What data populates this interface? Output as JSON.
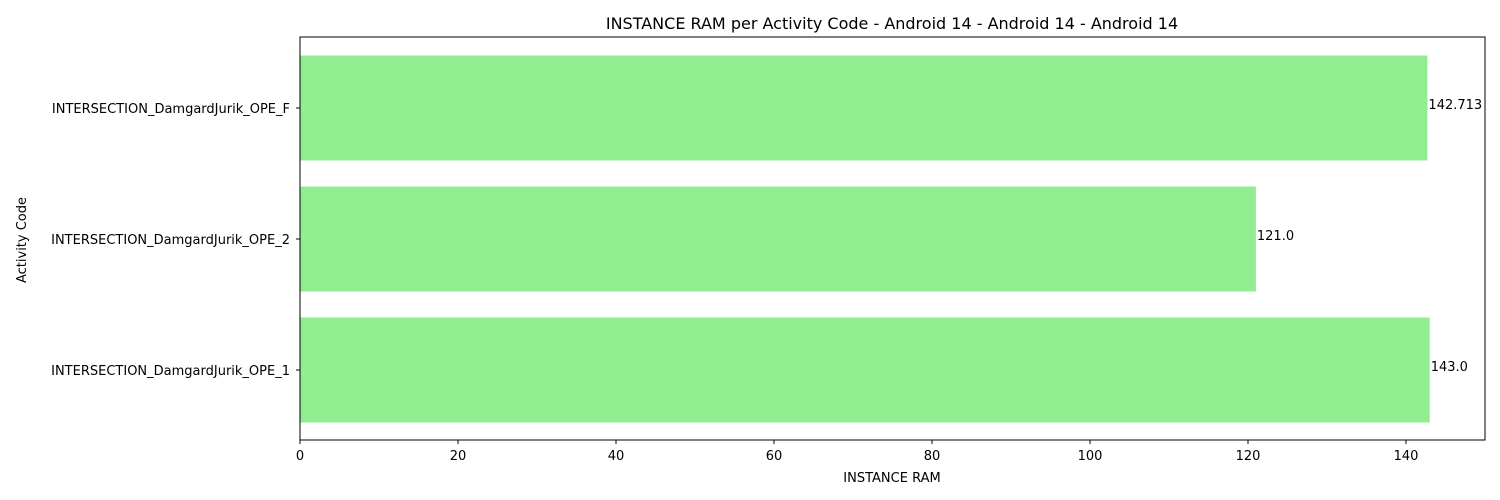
{
  "chart_data": {
    "type": "bar",
    "orientation": "horizontal",
    "title": "INSTANCE RAM per Activity Code - Android 14 - Android 14 - Android 14",
    "xlabel": "INSTANCE RAM",
    "ylabel": "Activity Code",
    "xlim": [
      0,
      150
    ],
    "xticks": [
      0,
      20,
      40,
      60,
      80,
      100,
      120,
      140
    ],
    "categories": [
      "INTERSECTION_DamgardJurik_OPE_1",
      "INTERSECTION_DamgardJurik_OPE_2",
      "INTERSECTION_DamgardJurik_OPE_F"
    ],
    "values": [
      143.0,
      121.0,
      142.713
    ],
    "value_labels": [
      "143.0",
      "121.0",
      "142.713"
    ],
    "bar_color": "#90ee90",
    "grid": false,
    "legend": "none"
  }
}
